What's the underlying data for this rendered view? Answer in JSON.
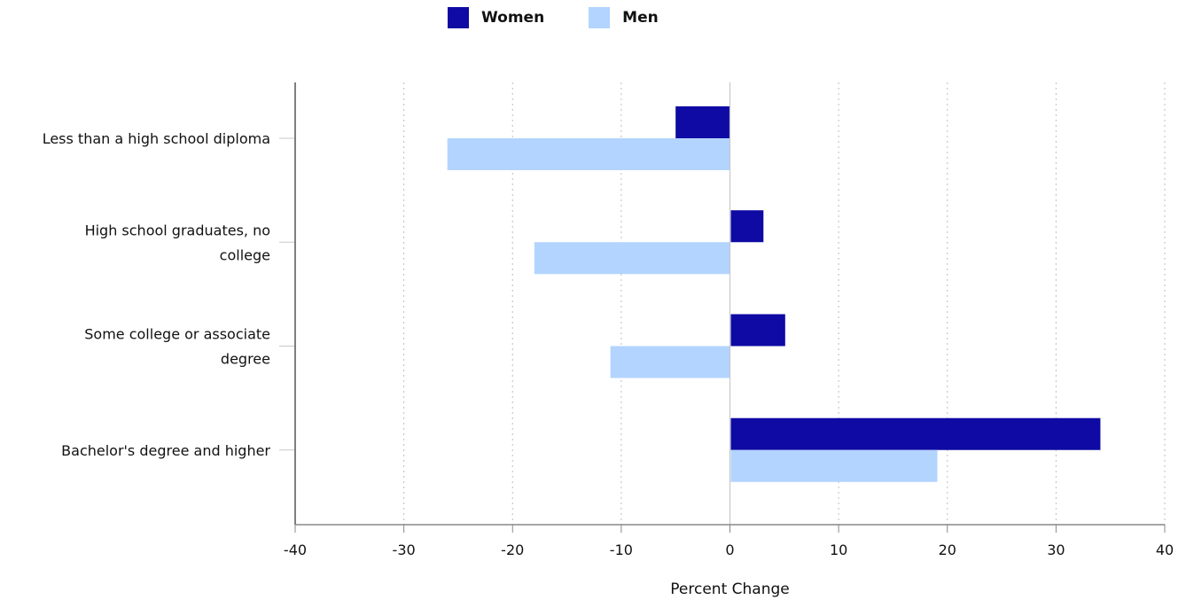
{
  "chart_data": {
    "type": "bar",
    "orientation": "horizontal",
    "categories": [
      "Less than a high school diploma",
      "High school graduates, no college",
      "Some college or associate degree",
      "Bachelor's degree and higher"
    ],
    "category_label_lines": [
      [
        "Less than a high school diploma"
      ],
      [
        "High school graduates, no",
        "college"
      ],
      [
        "Some college or associate",
        "degree"
      ],
      [
        "Bachelor's degree and higher"
      ]
    ],
    "series": [
      {
        "name": "Women",
        "color": "#0e0aa3",
        "values": [
          -5,
          3,
          5,
          34
        ]
      },
      {
        "name": "Men",
        "color": "#b3d4ff",
        "values": [
          -26,
          -18,
          -11,
          19
        ]
      }
    ],
    "xlabel": "Percent Change",
    "xlim": [
      -40,
      40
    ],
    "xticks": [
      -40,
      -30,
      -20,
      -10,
      0,
      10,
      20,
      30,
      40
    ],
    "xtick_labels": [
      "-40",
      "-30",
      "-20",
      "-10",
      "0",
      "10",
      "20",
      "30",
      "40"
    ],
    "grid": "vertical-dotted",
    "legend_position": "top-center"
  }
}
